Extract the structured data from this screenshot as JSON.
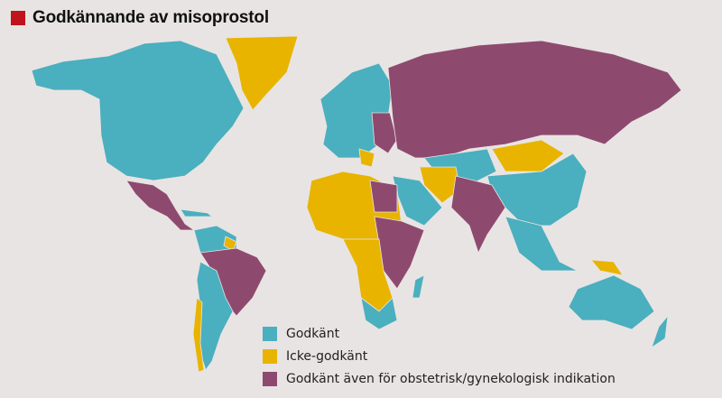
{
  "title": "Godkännande av misoprostol",
  "colors": {
    "title_marker": "#c0141c",
    "approved": "#4aafbe",
    "not_approved": "#e8b400",
    "obstetric": "#8e4a6e",
    "background": "#e8e4e3"
  },
  "legend": [
    {
      "label": "Godkänt",
      "color": "#4aafbe"
    },
    {
      "label": "Icke-godkänt",
      "color": "#e8b400"
    },
    {
      "label": "Godkänt även för obstetrisk/gynekologisk indikation",
      "color": "#8e4a6e"
    }
  ]
}
